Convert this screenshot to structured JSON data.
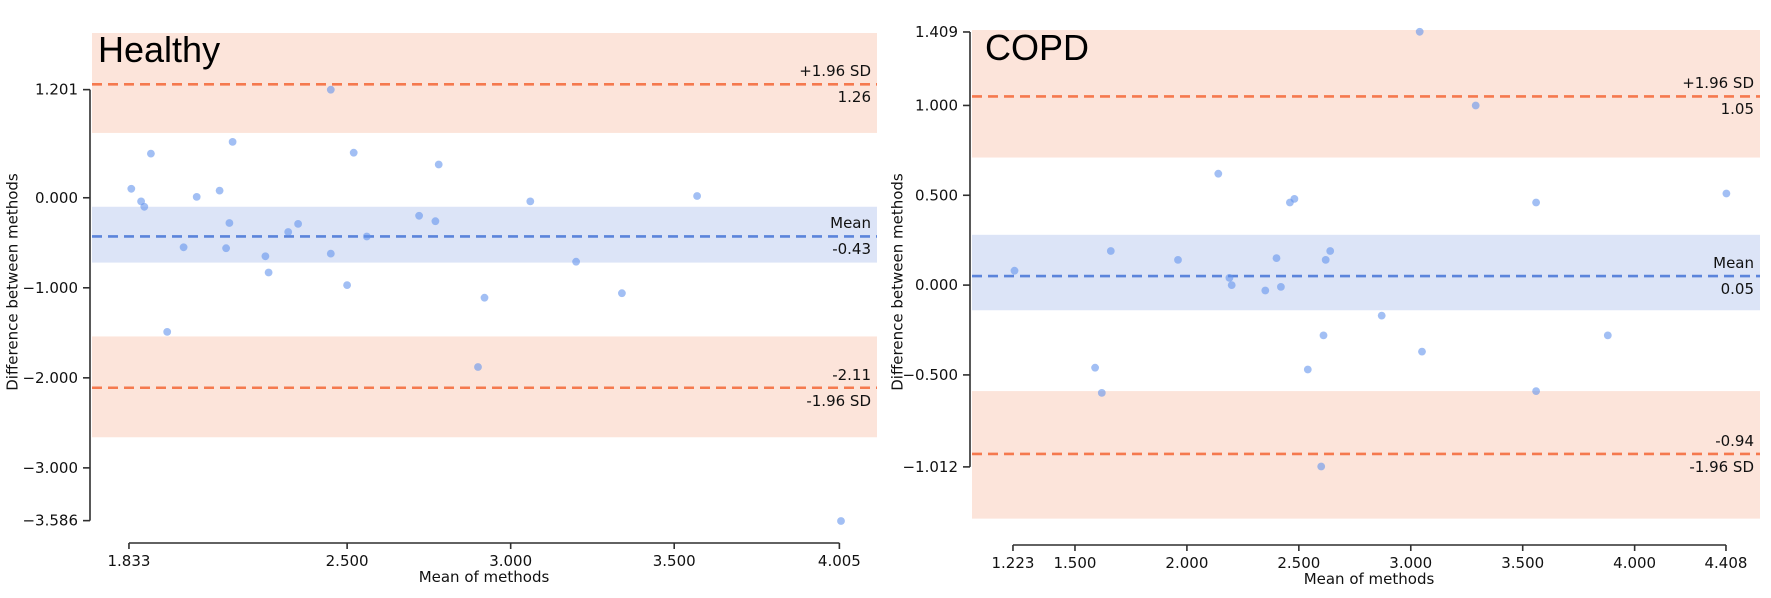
{
  "figure": {
    "background": "#ffffff"
  },
  "colors": {
    "point": "#6495ED",
    "mean_line": "#5b84db",
    "mean_band": "#dce4f7",
    "loa_line": "#f5794e",
    "loa_band": "#fce4da",
    "axis": "#2f2f2f",
    "text": "#111111"
  },
  "chart_data": [
    {
      "type": "scatter",
      "subtype": "bland-altman",
      "title": "Healthy",
      "xlabel": "Mean of methods",
      "ylabel": "Difference between methods",
      "xlim": [
        1.72,
        4.12
      ],
      "ylim": [
        -3.69,
        1.83
      ],
      "xticks": [
        1.833,
        2.5,
        3.0,
        3.5,
        4.005
      ],
      "xtick_labels": [
        "1.833",
        "2.500",
        "3.000",
        "3.500",
        "4.005"
      ],
      "yticks": [
        1.201,
        0.0,
        -1.0,
        -2.0,
        -3.0,
        -3.586
      ],
      "ytick_labels": [
        "1.201",
        "0.000",
        "−1.000",
        "−2.000",
        "−3.000",
        "−3.586"
      ],
      "grid": false,
      "mean": -0.43,
      "mean_label": "Mean",
      "mean_value_label": "-0.43",
      "mean_ci": [
        -0.72,
        -0.1
      ],
      "loa_upper": 1.26,
      "loa_upper_label": "+1.96 SD",
      "loa_upper_value_label": "1.26",
      "loa_upper_ci": [
        0.72,
        1.83
      ],
      "loa_lower": -2.11,
      "loa_lower_label": "-1.96 SD",
      "loa_lower_value_label": "-2.11",
      "loa_lower_ci": [
        -2.66,
        -1.54
      ],
      "points": [
        [
          2.45,
          1.2
        ],
        [
          2.15,
          0.62
        ],
        [
          1.9,
          0.49
        ],
        [
          2.52,
          0.5
        ],
        [
          2.78,
          0.37
        ],
        [
          1.84,
          0.1
        ],
        [
          2.11,
          0.08
        ],
        [
          2.04,
          0.01
        ],
        [
          1.87,
          -0.04
        ],
        [
          1.88,
          -0.1
        ],
        [
          2.35,
          -0.29
        ],
        [
          2.32,
          -0.38
        ],
        [
          2.14,
          -0.28
        ],
        [
          2.0,
          -0.55
        ],
        [
          2.13,
          -0.56
        ],
        [
          2.25,
          -0.65
        ],
        [
          2.45,
          -0.62
        ],
        [
          2.56,
          -0.43
        ],
        [
          2.26,
          -0.83
        ],
        [
          2.5,
          -0.97
        ],
        [
          2.72,
          -0.2
        ],
        [
          2.77,
          -0.26
        ],
        [
          3.06,
          -0.04
        ],
        [
          3.57,
          0.02
        ],
        [
          3.2,
          -0.71
        ],
        [
          1.95,
          -1.49
        ],
        [
          2.92,
          -1.11
        ],
        [
          3.34,
          -1.06
        ],
        [
          2.9,
          -1.88
        ],
        [
          4.01,
          -3.59
        ]
      ]
    },
    {
      "type": "scatter",
      "subtype": "bland-altman",
      "title": "COPD",
      "xlabel": "Mean of methods",
      "ylabel": "Difference between methods",
      "xlim": [
        1.04,
        4.56
      ],
      "ylim": [
        -1.38,
        1.42
      ],
      "xticks": [
        1.223,
        1.5,
        2.0,
        2.5,
        3.0,
        3.5,
        4.0,
        4.408
      ],
      "xtick_labels": [
        "1.223",
        "1.500",
        "2.000",
        "2.500",
        "3.000",
        "3.500",
        "4.000",
        "4.408"
      ],
      "yticks": [
        1.409,
        1.0,
        0.5,
        0.0,
        -0.5,
        -1.012
      ],
      "ytick_labels": [
        "1.409",
        "1.000",
        "0.500",
        "0.000",
        "−0.500",
        "−1.012"
      ],
      "grid": false,
      "mean": 0.05,
      "mean_label": "Mean",
      "mean_value_label": "0.05",
      "mean_ci": [
        -0.14,
        0.28
      ],
      "loa_upper": 1.05,
      "loa_upper_label": "+1.96 SD",
      "loa_upper_value_label": "1.05",
      "loa_upper_ci": [
        0.71,
        1.42
      ],
      "loa_lower": -0.94,
      "loa_lower_label": "-1.96 SD",
      "loa_lower_value_label": "-0.94",
      "loa_lower_ci": [
        -1.3,
        -0.59
      ],
      "points": [
        [
          3.04,
          1.41
        ],
        [
          3.29,
          1.0
        ],
        [
          2.14,
          0.62
        ],
        [
          2.46,
          0.46
        ],
        [
          2.48,
          0.48
        ],
        [
          3.56,
          0.46
        ],
        [
          4.41,
          0.51
        ],
        [
          1.23,
          0.08
        ],
        [
          1.66,
          0.19
        ],
        [
          1.96,
          0.14
        ],
        [
          2.4,
          0.15
        ],
        [
          2.62,
          0.14
        ],
        [
          2.64,
          0.19
        ],
        [
          2.19,
          0.04
        ],
        [
          2.2,
          0.0
        ],
        [
          2.35,
          -0.03
        ],
        [
          2.42,
          -0.01
        ],
        [
          2.87,
          -0.17
        ],
        [
          2.61,
          -0.28
        ],
        [
          3.05,
          -0.37
        ],
        [
          2.54,
          -0.47
        ],
        [
          1.59,
          -0.46
        ],
        [
          1.62,
          -0.6
        ],
        [
          3.88,
          -0.28
        ],
        [
          3.56,
          -0.59
        ],
        [
          2.6,
          -1.01
        ]
      ]
    }
  ]
}
